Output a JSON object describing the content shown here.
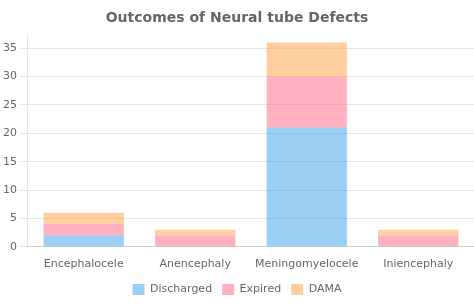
{
  "chart_data": {
    "type": "bar",
    "title": "Outcomes of Neural tube Defects",
    "categories": [
      "Encephalocele",
      "Anencephaly",
      "Meningomyelocele",
      "Iniencephaly"
    ],
    "series": [
      {
        "name": "Discharged",
        "values": [
          2,
          0,
          21,
          0
        ]
      },
      {
        "name": "Expired",
        "values": [
          2,
          2,
          9,
          2
        ]
      },
      {
        "name": "DAMA",
        "values": [
          2,
          1,
          6,
          1
        ]
      }
    ],
    "stacked": true,
    "ylim": [
      0,
      37
    ],
    "yticks": [
      0,
      5,
      10,
      15,
      20,
      25,
      30,
      35
    ],
    "grid": true,
    "legend": "bottom"
  }
}
